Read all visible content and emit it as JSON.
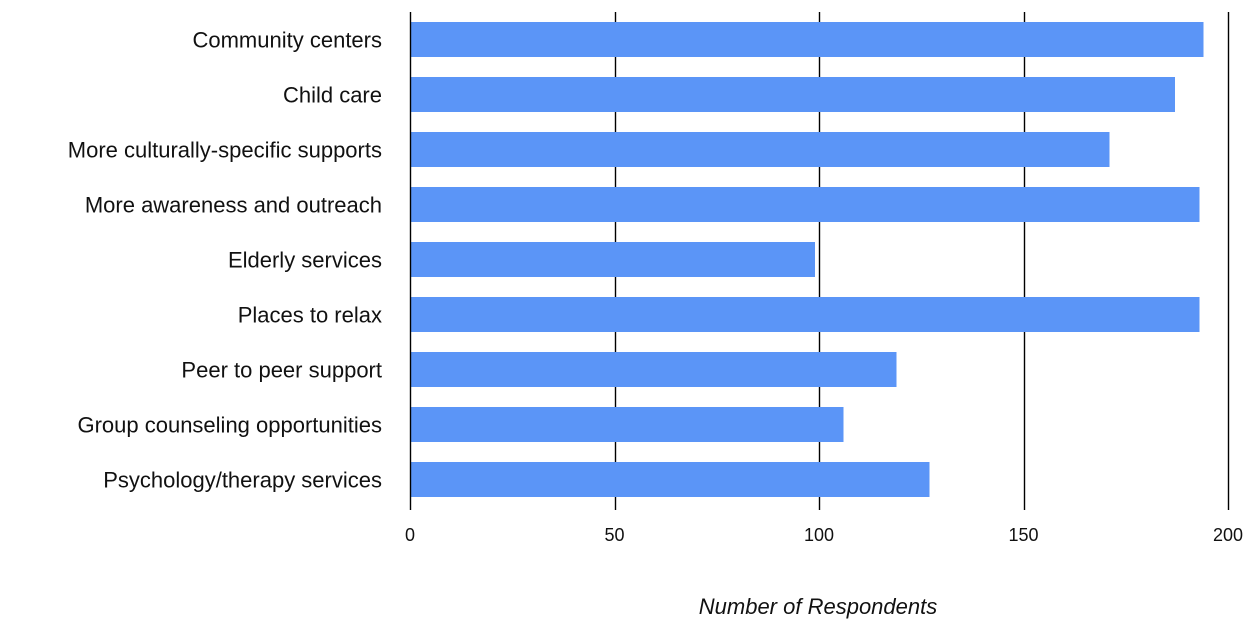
{
  "chart_data": {
    "type": "bar",
    "orientation": "horizontal",
    "categories": [
      "Community centers",
      "Child care",
      "More culturally-specific supports",
      "More awareness and outreach",
      "Elderly services",
      "Places to relax",
      "Peer to peer support",
      "Group counseling opportunities",
      "Psychology/therapy services"
    ],
    "values": [
      194,
      187,
      171,
      193,
      99,
      193,
      119,
      106,
      127
    ],
    "title": "",
    "xlabel": "Number of Respondents",
    "ylabel": "",
    "xlim": [
      0,
      200
    ],
    "xticks": [
      0,
      50,
      100,
      150,
      200
    ],
    "tick_labels": [
      "0",
      "50",
      "100",
      "150",
      "200"
    ],
    "grid": true,
    "legend": "none",
    "bar_color": "#5B95F7"
  }
}
